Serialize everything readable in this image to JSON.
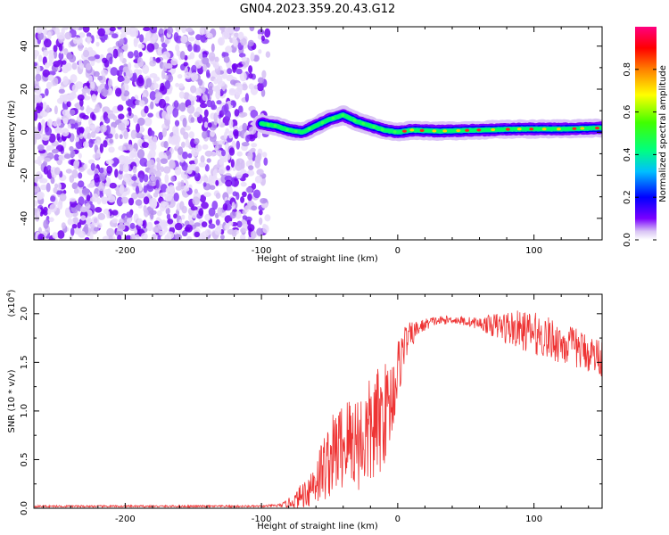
{
  "page": {
    "title": "GN04.2023.359.20.43.G12"
  },
  "chart_data": [
    {
      "type": "heatmap",
      "title": "GN04.2023.359.20.43.G12",
      "xlabel": "Height of straight line (km)",
      "ylabel": "Frequency (Hz)",
      "xlim": [
        -267,
        150
      ],
      "ylim": [
        -50,
        49
      ],
      "x_ticks": [
        -200,
        -100,
        0,
        100
      ],
      "y_ticks": [
        -40,
        -20,
        0,
        20,
        40
      ],
      "x_tick_labels": [
        "-200",
        "-100",
        "0",
        "100"
      ],
      "y_tick_labels": [
        "-40",
        "-20",
        "0",
        "20",
        "40"
      ],
      "noise_region_x": [
        -267,
        -95
      ],
      "signal_ridge": {
        "x": [
          -100,
          -90,
          -80,
          -70,
          -60,
          -50,
          -40,
          -30,
          -20,
          -10,
          0,
          10,
          30,
          60,
          90,
          120,
          150
        ],
        "freq": [
          4,
          3,
          1,
          0,
          3,
          6,
          8,
          5,
          3,
          1,
          0,
          1,
          0.5,
          1,
          1.5,
          1.5,
          2
        ]
      },
      "grid": false,
      "colorbar": {
        "label": "Normalized spectral amplitude",
        "range": [
          0.0,
          1.0
        ],
        "ticks": [
          0.0,
          0.2,
          0.4,
          0.6,
          0.8
        ],
        "tick_labels": [
          "0.0",
          "0.2",
          "0.4",
          "0.6",
          "0.8"
        ],
        "colormap": [
          "#ffffff",
          "#d9c4f5",
          "#7a00ff",
          "#0000ff",
          "#00bfff",
          "#00ff80",
          "#40ff00",
          "#ffff00",
          "#ff8000",
          "#ff0000",
          "#ff0080"
        ]
      }
    },
    {
      "type": "line",
      "xlabel": "Height of straight line (km)",
      "ylabel": "SNR (10 * v/v)",
      "yscale_label": "(x10",
      "yscale_exp": "4",
      "yscale_close": ")",
      "xlim": [
        -267,
        150
      ],
      "ylim": [
        0,
        2.2
      ],
      "x_ticks": [
        -200,
        -100,
        0,
        100
      ],
      "y_ticks": [
        0.0,
        0.5,
        1.0,
        1.5,
        2.0
      ],
      "x_tick_labels": [
        "-200",
        "-100",
        "0",
        "100"
      ],
      "y_tick_labels": [
        "0.0",
        "0.5",
        "1.0",
        "1.5",
        "2.0"
      ],
      "grid": false,
      "line_color": "#ee3333",
      "series": [
        {
          "x": [
            -267,
            -200,
            -150,
            -100,
            -85,
            -75,
            -65,
            -55,
            -45,
            -35,
            -25,
            -15,
            -5,
            0,
            5,
            15,
            25,
            40,
            60,
            80,
            100,
            120,
            140,
            150
          ],
          "values": [
            0.02,
            0.02,
            0.02,
            0.02,
            0.03,
            0.08,
            0.2,
            0.4,
            0.6,
            0.7,
            0.7,
            0.85,
            1.1,
            1.4,
            1.7,
            1.85,
            1.92,
            1.94,
            1.9,
            1.86,
            1.8,
            1.7,
            1.6,
            1.55
          ],
          "noise_amplitude": [
            0.01,
            0.01,
            0.01,
            0.01,
            0.02,
            0.08,
            0.2,
            0.35,
            0.45,
            0.5,
            0.55,
            0.6,
            0.45,
            0.35,
            0.2,
            0.08,
            0.05,
            0.04,
            0.06,
            0.18,
            0.22,
            0.22,
            0.2,
            0.2
          ]
        }
      ]
    }
  ]
}
